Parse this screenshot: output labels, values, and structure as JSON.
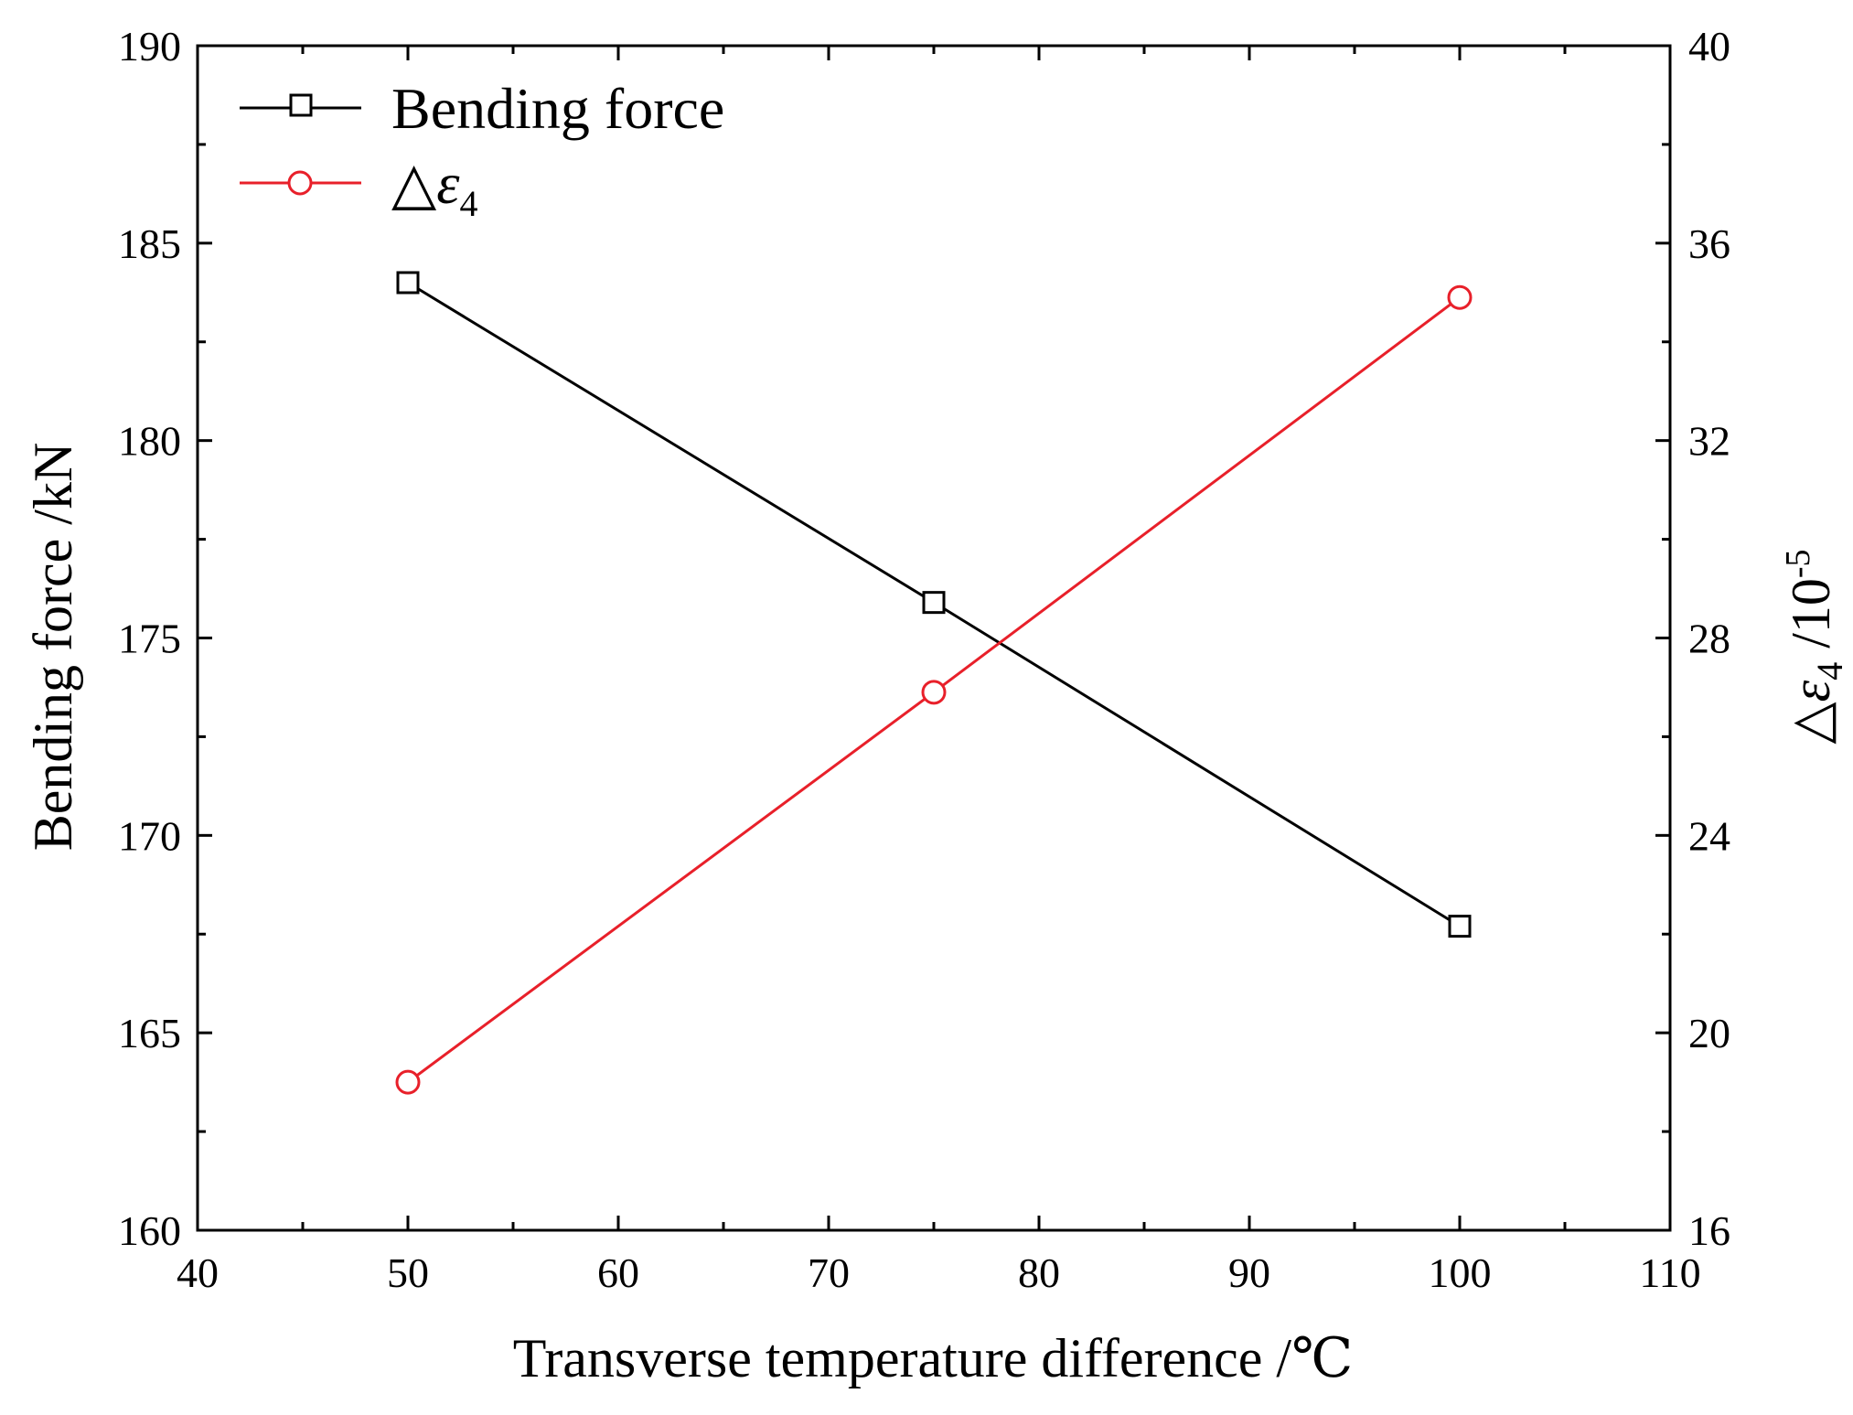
{
  "chart_data": {
    "type": "line",
    "title": "",
    "xlabel": "Transverse temperature difference /℃",
    "ylabel": "Bending force /kN",
    "y2label": {
      "prefix": "△",
      "symbol": "ε",
      "subscript": "4",
      "unit_prefix": " /10",
      "unit_exponent": "-5"
    },
    "xlim": [
      40,
      110
    ],
    "ylim": [
      160,
      190
    ],
    "y2lim": [
      16,
      40
    ],
    "x_ticks": [
      40,
      50,
      60,
      70,
      80,
      90,
      100,
      110
    ],
    "y_ticks": [
      160,
      165,
      170,
      175,
      180,
      185,
      190
    ],
    "y2_ticks": [
      16,
      20,
      24,
      28,
      32,
      36,
      40
    ],
    "x_minor_step": 5,
    "y_minor_step": 2.5,
    "y2_minor_step": 2,
    "grid": false,
    "legend_position": "top-left",
    "series": [
      {
        "name": "Bending force",
        "axis": "left",
        "color": "#000000",
        "marker": "square",
        "x": [
          50,
          75,
          100
        ],
        "values": [
          184.0,
          175.9,
          167.7
        ]
      },
      {
        "name": "△ε4",
        "legend": {
          "prefix": "△",
          "symbol": "ε",
          "subscript": "4"
        },
        "axis": "right",
        "color": "#e8202a",
        "marker": "circle",
        "x": [
          50,
          75,
          100
        ],
        "values": [
          19.0,
          26.9,
          34.9
        ]
      }
    ]
  }
}
